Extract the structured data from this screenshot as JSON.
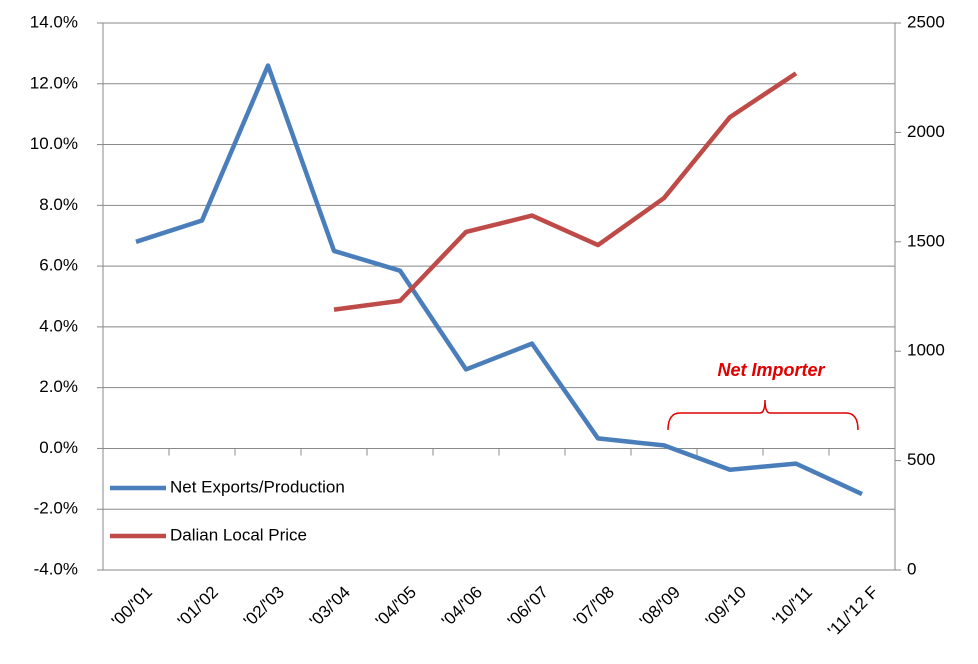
{
  "chart_data": {
    "type": "line",
    "categories": [
      "'00/'01",
      "'01/'02",
      "'02/'03",
      "'03/'04",
      "'04/'05",
      "'04/'06",
      "'06/'07",
      "'07/'08",
      "'08/'09",
      "'09/'10",
      "'10/'11",
      "'11/'12 F"
    ],
    "series": [
      {
        "name": "Net Exports/Production",
        "color": "#4a7ebb",
        "values": [
          6.8,
          7.5,
          12.6,
          6.5,
          5.85,
          2.6,
          3.45,
          0.33,
          0.1,
          -0.7,
          -0.5,
          -1.5
        ]
      },
      {
        "name": "Dalian Local Price",
        "color": "#be4b48",
        "axis": "y2",
        "values": [
          null,
          null,
          null,
          1190,
          1230,
          1545,
          1620,
          1485,
          1700,
          2070,
          2270,
          null
        ]
      }
    ],
    "ylim": [
      -4,
      14
    ],
    "yticks": [
      {
        "value": -4,
        "label": "-4.0%"
      },
      {
        "value": -2,
        "label": "-2.0%"
      },
      {
        "value": 0,
        "label": "0.0%"
      },
      {
        "value": 2,
        "label": "2.0%"
      },
      {
        "value": 4,
        "label": "4.0%"
      },
      {
        "value": 6,
        "label": "6.0%"
      },
      {
        "value": 8,
        "label": "8.0%"
      },
      {
        "value": 10,
        "label": "10.0%"
      },
      {
        "value": 12,
        "label": "12.0%"
      },
      {
        "value": 14,
        "label": "14.0%"
      }
    ],
    "y2lim": [
      0,
      2500
    ],
    "y2ticks": [
      0,
      500,
      1000,
      1500,
      2000,
      2500
    ],
    "grid": true,
    "legend": "lower left",
    "annotation": "Net Importer",
    "annotation_color": "#e00000"
  }
}
